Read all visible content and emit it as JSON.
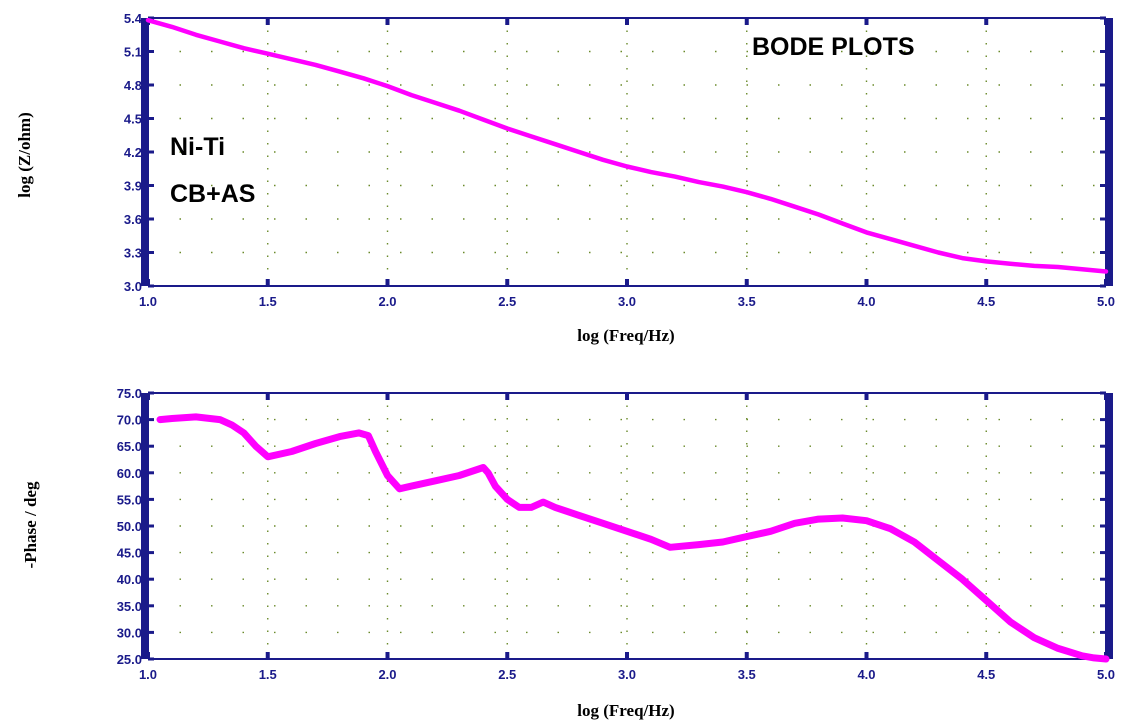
{
  "chart_data": [
    {
      "type": "line",
      "title": "",
      "xlabel": "log (Freq/Hz)",
      "ylabel": "log (Z/ohm)",
      "xlim": [
        1.0,
        5.0
      ],
      "ylim": [
        3.0,
        5.4
      ],
      "x_ticks": [
        "1.0",
        "1.5",
        "2.0",
        "2.5",
        "3.0",
        "3.5",
        "4.0",
        "4.5",
        "5.0"
      ],
      "y_ticks": [
        "5.4",
        "5.1",
        "4.8",
        "4.5",
        "4.2",
        "3.9",
        "3.6",
        "3.3",
        "3.0"
      ],
      "annotations": [
        "BODE PLOTS",
        "Ni-Ti",
        "CB+AS"
      ],
      "grid": "dotted",
      "series": [
        {
          "color": "#ff00ff",
          "x": [
            1.0,
            1.1,
            1.2,
            1.3,
            1.4,
            1.5,
            1.6,
            1.7,
            1.8,
            1.9,
            2.0,
            2.1,
            2.2,
            2.3,
            2.4,
            2.5,
            2.6,
            2.7,
            2.8,
            2.9,
            3.0,
            3.1,
            3.2,
            3.3,
            3.4,
            3.5,
            3.6,
            3.7,
            3.8,
            3.9,
            4.0,
            4.1,
            4.2,
            4.3,
            4.4,
            4.5,
            4.6,
            4.7,
            4.8,
            4.9,
            5.0
          ],
          "y": [
            5.38,
            5.32,
            5.25,
            5.19,
            5.13,
            5.08,
            5.03,
            4.98,
            4.92,
            4.86,
            4.79,
            4.71,
            4.64,
            4.57,
            4.49,
            4.41,
            4.34,
            4.27,
            4.2,
            4.13,
            4.07,
            4.02,
            3.98,
            3.93,
            3.89,
            3.84,
            3.78,
            3.71,
            3.64,
            3.56,
            3.48,
            3.42,
            3.36,
            3.3,
            3.25,
            3.22,
            3.2,
            3.18,
            3.17,
            3.15,
            3.13
          ]
        }
      ]
    },
    {
      "type": "line",
      "title": "",
      "xlabel": "log (Freq/Hz)",
      "ylabel": "-Phase / deg",
      "xlim": [
        1.0,
        5.0
      ],
      "ylim": [
        25.0,
        75.0
      ],
      "x_ticks": [
        "1.0",
        "1.5",
        "2.0",
        "2.5",
        "3.0",
        "3.5",
        "4.0",
        "4.5",
        "5.0"
      ],
      "y_ticks": [
        "75.0",
        "70.0",
        "65.0",
        "60.0",
        "55.0",
        "50.0",
        "45.0",
        "40.0",
        "35.0",
        "30.0",
        "25.0"
      ],
      "grid": "dotted",
      "series": [
        {
          "color": "#ff00ff",
          "x": [
            1.05,
            1.1,
            1.2,
            1.3,
            1.35,
            1.4,
            1.45,
            1.5,
            1.6,
            1.7,
            1.8,
            1.88,
            1.92,
            1.95,
            2.0,
            2.05,
            2.1,
            2.2,
            2.3,
            2.4,
            2.42,
            2.45,
            2.5,
            2.55,
            2.6,
            2.65,
            2.7,
            2.8,
            2.9,
            3.0,
            3.1,
            3.18,
            3.3,
            3.4,
            3.5,
            3.6,
            3.7,
            3.8,
            3.9,
            4.0,
            4.1,
            4.2,
            4.3,
            4.4,
            4.5,
            4.6,
            4.7,
            4.8,
            4.9,
            4.95,
            5.0
          ],
          "y": [
            70.0,
            70.2,
            70.5,
            70.0,
            69.0,
            67.5,
            65.0,
            63.0,
            64.0,
            65.5,
            66.8,
            67.5,
            67.0,
            64.0,
            59.5,
            57.0,
            57.5,
            58.5,
            59.5,
            61.0,
            60.0,
            57.5,
            55.0,
            53.5,
            53.5,
            54.5,
            53.5,
            52.0,
            50.5,
            49.0,
            47.5,
            46.0,
            46.5,
            47.0,
            48.0,
            49.0,
            50.5,
            51.3,
            51.5,
            51.0,
            49.5,
            47.0,
            43.5,
            40.0,
            36.0,
            32.0,
            29.0,
            27.0,
            25.6,
            25.2,
            25.0
          ]
        }
      ]
    }
  ]
}
